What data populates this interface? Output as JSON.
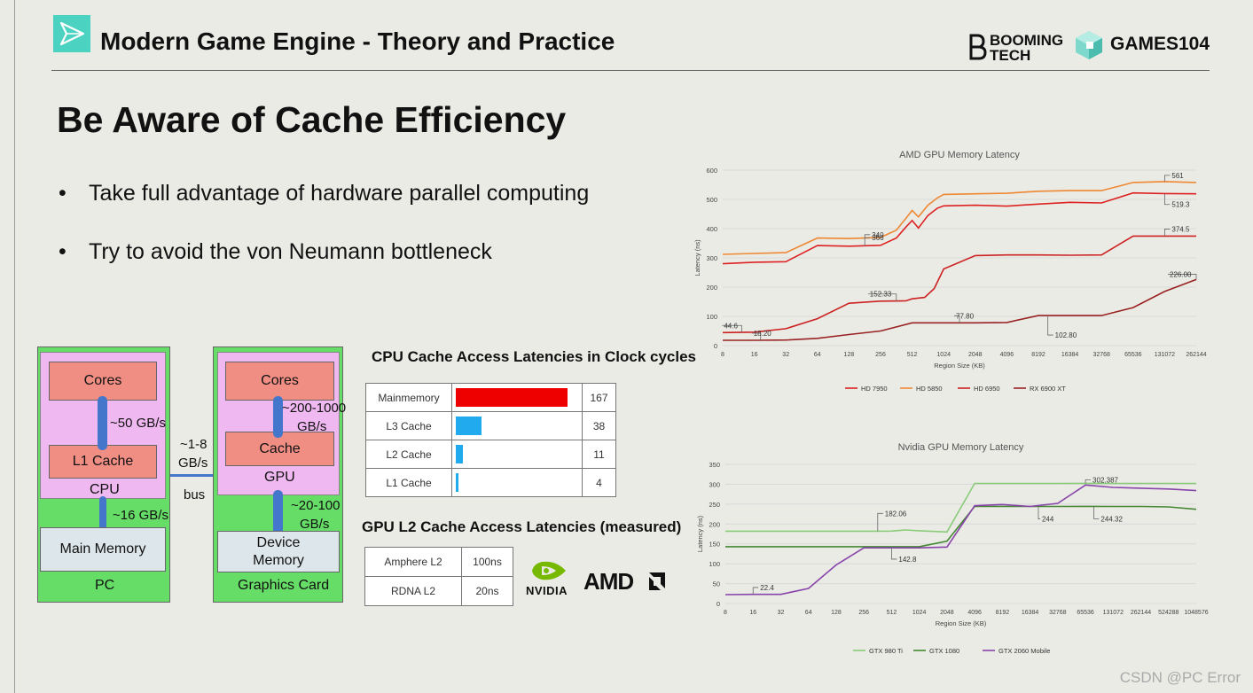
{
  "header": {
    "title": "Modern Game Engine - Theory and Practice",
    "logo1_line1": "BOOMING",
    "logo1_line2": "TECH",
    "logo2": "GAMES104"
  },
  "slide": {
    "title": "Be Aware of Cache Efficiency",
    "bullets": [
      "Take full advantage of hardware parallel computing",
      "Try to avoid the von Neumann bottleneck"
    ]
  },
  "diagram": {
    "pc": {
      "cores": "Cores",
      "bw1": "~50 GB/s",
      "l1": "L1 Cache",
      "cpu": "CPU",
      "bw2": "~16 GB/s",
      "main_memory": "Main Memory",
      "pc": "PC"
    },
    "bus": {
      "bw": "~1-8",
      "unit": "GB/s",
      "label": "bus"
    },
    "gpu": {
      "cores": "Cores",
      "bw1a": "~200-1000",
      "bw1b": "GB/s",
      "cache": "Cache",
      "gpu": "GPU",
      "bw2a": "~20-100",
      "bw2b": "GB/s",
      "dev1": "Device",
      "dev2": "Memory",
      "card": "Graphics Card"
    }
  },
  "cpu_table": {
    "title": "CPU  Cache Access Latencies in Clock cycles",
    "rows": [
      {
        "name": "Mainmemory",
        "value": 167,
        "color": "#ee0000"
      },
      {
        "name": "L3 Cache",
        "value": 38,
        "color": "#22aaee"
      },
      {
        "name": "L2 Cache",
        "value": 11,
        "color": "#22aaee"
      },
      {
        "name": "L1 Cache",
        "value": 4,
        "color": "#22aaee"
      }
    ]
  },
  "gpu_table": {
    "title": "GPU L2 Cache Access Latencies (measured)",
    "rows": [
      {
        "name": "Amphere L2",
        "value": "100ns"
      },
      {
        "name": "RDNA L2",
        "value": "20ns"
      }
    ]
  },
  "vendor": {
    "nvidia": "NVIDIA",
    "amd": "AMD"
  },
  "chart_data": [
    {
      "type": "line",
      "title": "AMD GPU Memory Latency",
      "xlabel": "Region Size (KB)",
      "ylabel": "Latency (ns)",
      "x": [
        "8",
        "16",
        "32",
        "64",
        "128",
        "256",
        "512",
        "1024",
        "2048",
        "4096",
        "8192",
        "16384",
        "32768",
        "65536",
        "131072",
        "262144"
      ],
      "ylim": [
        0,
        600
      ],
      "yticks": [
        0,
        100,
        200,
        300,
        400,
        500,
        600
      ],
      "series": [
        {
          "name": "HD 7950",
          "color": "#dd2222",
          "points": [
            [
              0,
              280
            ],
            [
              1,
              285
            ],
            [
              2,
              287
            ],
            [
              3,
              342
            ],
            [
              4,
              340
            ],
            [
              5,
              343
            ],
            [
              5.5,
              368
            ],
            [
              5.8,
              405
            ],
            [
              6,
              428
            ],
            [
              6.2,
              402
            ],
            [
              6.5,
              445
            ],
            [
              6.8,
              470
            ],
            [
              7,
              478
            ],
            [
              8,
              480
            ],
            [
              9,
              477
            ],
            [
              10,
              484
            ],
            [
              11,
              490
            ],
            [
              12,
              488
            ],
            [
              13,
              522
            ],
            [
              14,
              520
            ],
            [
              15,
              519
            ]
          ]
        },
        {
          "name": "HD 5850",
          "color": "#ee8833",
          "points": [
            [
              0,
              312
            ],
            [
              1,
              315
            ],
            [
              2,
              318
            ],
            [
              3,
              368
            ],
            [
              4,
              366
            ],
            [
              5,
              370
            ],
            [
              5.5,
              395
            ],
            [
              5.8,
              435
            ],
            [
              6,
              462
            ],
            [
              6.2,
              440
            ],
            [
              6.5,
              480
            ],
            [
              6.8,
              505
            ],
            [
              7,
              517
            ],
            [
              8,
              519
            ],
            [
              9,
              521
            ],
            [
              10,
              528
            ],
            [
              11,
              530
            ],
            [
              12,
              530
            ],
            [
              13,
              558
            ],
            [
              14,
              561
            ],
            [
              15,
              558
            ]
          ]
        },
        {
          "name": "HD 6950",
          "color": "#cc2222",
          "points": [
            [
              0,
              44.6
            ],
            [
              1,
              46
            ],
            [
              2,
              58
            ],
            [
              3,
              92
            ],
            [
              4,
              145
            ],
            [
              5,
              152
            ],
            [
              5.8,
              153
            ],
            [
              6,
              160
            ],
            [
              6.4,
              165
            ],
            [
              6.7,
              195
            ],
            [
              7,
              262
            ],
            [
              8,
              308
            ],
            [
              9,
              310
            ],
            [
              10,
              310
            ],
            [
              11,
              309
            ],
            [
              12,
              310
            ],
            [
              13,
              374.5
            ],
            [
              14,
              374.5
            ],
            [
              15,
              374.5
            ]
          ]
        },
        {
          "name": "RX 6900 XT",
          "color": "#992222",
          "points": [
            [
              0,
              18.2
            ],
            [
              1,
              18.2
            ],
            [
              2,
              19
            ],
            [
              3,
              25
            ],
            [
              4,
              38
            ],
            [
              5,
              50
            ],
            [
              6,
              77.8
            ],
            [
              7,
              77.8
            ],
            [
              8,
              77.8
            ],
            [
              9,
              79
            ],
            [
              10,
              102.8
            ],
            [
              11,
              102.8
            ],
            [
              12,
              102.8
            ],
            [
              13,
              130
            ],
            [
              14,
              185
            ],
            [
              15,
              226
            ]
          ]
        }
      ],
      "annotations": [
        "561",
        "519.3",
        "366",
        "340",
        "374.5",
        "152.33",
        "226.00",
        "44.6",
        "18.20",
        "77.80",
        "102.80"
      ]
    },
    {
      "type": "line",
      "title": "Nvidia GPU Memory Latency",
      "xlabel": "Region Size (KB)",
      "ylabel": "Latency (ns)",
      "x": [
        "8",
        "16",
        "32",
        "64",
        "128",
        "256",
        "512",
        "1024",
        "2048",
        "4096",
        "8192",
        "16384",
        "32768",
        "65536",
        "131072",
        "262144",
        "524288",
        "1048576"
      ],
      "ylim": [
        0,
        350
      ],
      "yticks": [
        0,
        50,
        100,
        150,
        200,
        250,
        300,
        350
      ],
      "series": [
        {
          "name": "GTX 980 Ti",
          "color": "#88cc77",
          "points": [
            [
              0,
              182
            ],
            [
              1,
              182
            ],
            [
              2,
              182
            ],
            [
              3,
              182
            ],
            [
              4,
              182
            ],
            [
              5,
              182
            ],
            [
              6,
              182.06
            ],
            [
              6.5,
              185
            ],
            [
              7,
              183
            ],
            [
              8,
              180
            ],
            [
              9,
              302
            ],
            [
              10,
              302
            ],
            [
              11,
              302
            ],
            [
              12,
              302
            ],
            [
              13,
              302.387
            ],
            [
              14,
              302
            ],
            [
              15,
              302
            ],
            [
              16,
              302
            ],
            [
              17,
              302
            ]
          ]
        },
        {
          "name": "GTX 1080",
          "color": "#448833",
          "points": [
            [
              0,
              143
            ],
            [
              1,
              143
            ],
            [
              2,
              143
            ],
            [
              3,
              143
            ],
            [
              4,
              143
            ],
            [
              5,
              143
            ],
            [
              6,
              142.8
            ],
            [
              7,
              143
            ],
            [
              8,
              157
            ],
            [
              9,
              244
            ],
            [
              10,
              244
            ],
            [
              11,
              244
            ],
            [
              12,
              244
            ],
            [
              13,
              244.32
            ],
            [
              14,
              244
            ],
            [
              15,
              244
            ],
            [
              16,
              243
            ],
            [
              17,
              237
            ]
          ]
        },
        {
          "name": "GTX 2060 Mobile",
          "color": "#8844aa",
          "points": [
            [
              0,
              22.4
            ],
            [
              1,
              23
            ],
            [
              2,
              23
            ],
            [
              3,
              38
            ],
            [
              4,
              97
            ],
            [
              5,
              140
            ],
            [
              6,
              140
            ],
            [
              7,
              140
            ],
            [
              8,
              142
            ],
            [
              9,
              246
            ],
            [
              10,
              249
            ],
            [
              11,
              244
            ],
            [
              12,
              252
            ],
            [
              13,
              298
            ],
            [
              14,
              292
            ],
            [
              15,
              290
            ],
            [
              16,
              288
            ],
            [
              17,
              284
            ]
          ]
        }
      ],
      "annotations": [
        "302.387",
        "182.06",
        "244",
        "244.32",
        "142.8",
        "22.4"
      ]
    }
  ],
  "watermark": "CSDN @PC Error"
}
